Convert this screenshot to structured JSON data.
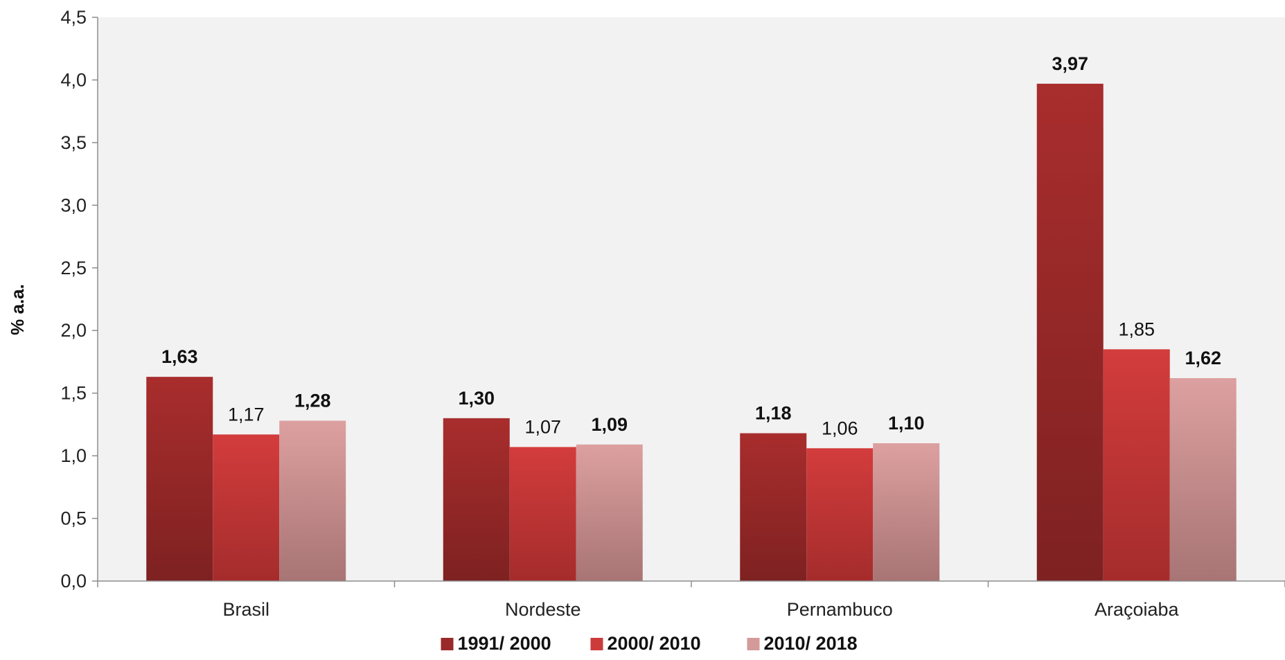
{
  "chart_data": {
    "type": "bar",
    "ylabel": "% a.a.",
    "xlabel": "",
    "ylim": [
      0,
      4.5
    ],
    "yticks": [
      "0,0",
      "0,5",
      "1,0",
      "1,5",
      "2,0",
      "2,5",
      "3,0",
      "3,5",
      "4,0",
      "4,5"
    ],
    "categories": [
      "Brasil",
      "Nordeste",
      "Pernambuco",
      "Araçoiaba"
    ],
    "series": [
      {
        "name": "1991/ 2000",
        "values": [
          1.63,
          1.3,
          1.18,
          3.97
        ],
        "labels": [
          "1,63",
          "1,30",
          "1,18",
          "3,97"
        ],
        "label_bold": true,
        "color_top": "#a92d2d",
        "color_bottom": "#7e2121",
        "legend_color": "#9a2a2a"
      },
      {
        "name": "2000/ 2010",
        "values": [
          1.17,
          1.07,
          1.06,
          1.85
        ],
        "labels": [
          "1,17",
          "1,07",
          "1,06",
          "1,85"
        ],
        "label_bold": false,
        "color_top": "#d33c3c",
        "color_bottom": "#a52c2c",
        "legend_color": "#cc3a3a"
      },
      {
        "name": "2010/ 2018",
        "values": [
          1.28,
          1.09,
          1.1,
          1.62
        ],
        "labels": [
          "1,28",
          "1,09",
          "1,10",
          "1,62"
        ],
        "label_bold": true,
        "color_top": "#dda0a0",
        "color_bottom": "#a87474",
        "legend_color": "#d49a9a"
      }
    ],
    "plot_background": "#f2f2f2",
    "grid": false,
    "legend_position": "bottom"
  }
}
